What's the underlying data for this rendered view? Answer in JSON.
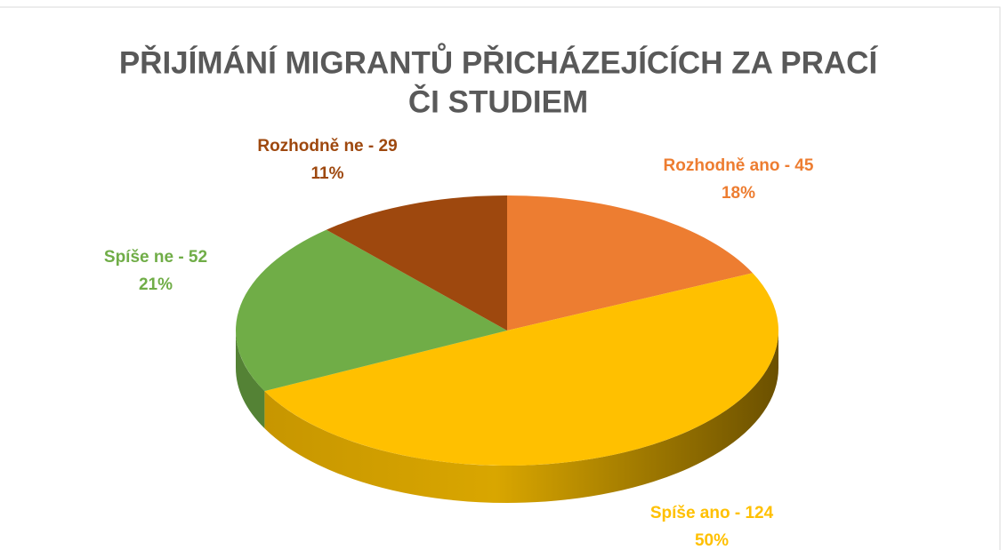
{
  "chart_data": {
    "type": "pie3d",
    "title": [
      "PŘIJÍMÁNÍ MIGRANTŮ PŘICHÁZEJÍCÍCH ZA PRACÍ",
      "ČI STUDIEM"
    ],
    "values": [
      45,
      124,
      52,
      29
    ],
    "value_labels": [
      "Rozhodně ano - 45",
      "Spíše ano - 124",
      "Spíše ne - 52",
      "Rozhodně ne - 29"
    ],
    "percents": [
      18,
      50,
      21,
      11
    ],
    "percent_labels": [
      "18%",
      "50%",
      "21%",
      "11%"
    ],
    "colors": [
      "#ED7D31",
      "#FFC000",
      "#70AD47",
      "#9E480E"
    ],
    "label_colors": [
      "#ED7D31",
      "#FFC000",
      "#70AD47",
      "#9E480E"
    ]
  }
}
